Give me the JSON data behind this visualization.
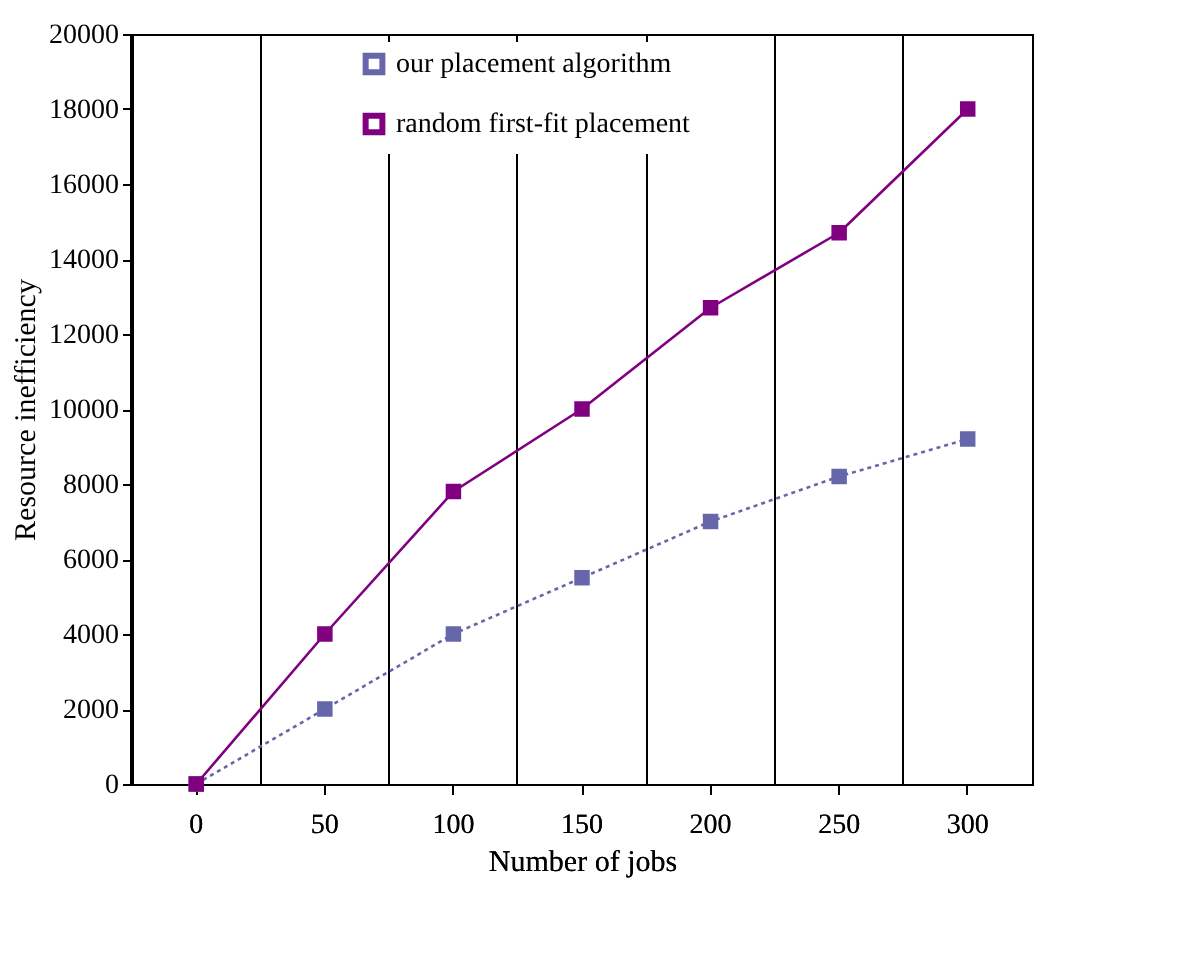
{
  "chart_data": {
    "type": "line",
    "xlabel": "Number of jobs",
    "ylabel": "Resource inefficiency",
    "categories": [
      "0",
      "50",
      "100",
      "150",
      "200",
      "250",
      "300"
    ],
    "series": [
      {
        "name": "our placement algorithm",
        "color": "#6666aa",
        "values": [
          0,
          2000,
          4000,
          5500,
          7000,
          8200,
          9200
        ],
        "line_style": "dotted"
      },
      {
        "name": "random first-fit placement",
        "color": "#800080",
        "values": [
          0,
          4000,
          7800,
          10000,
          12700,
          14700,
          18000
        ],
        "line_style": "solid"
      }
    ],
    "ylim": [
      0,
      20000
    ],
    "yticks": [
      0,
      2000,
      4000,
      6000,
      8000,
      10000,
      12000,
      14000,
      16000,
      18000,
      20000
    ],
    "grid": "x",
    "legend": "top",
    "marker": "square"
  }
}
